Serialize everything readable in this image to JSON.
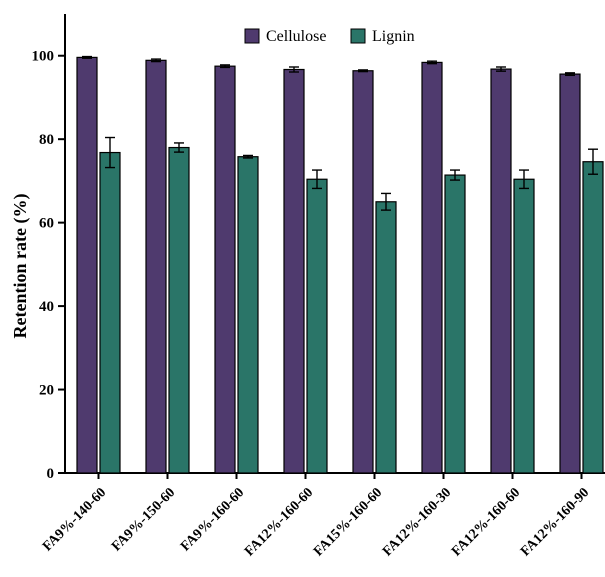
{
  "chart_data": {
    "type": "bar",
    "ylabel": "Retention rate (%)",
    "ylim": [
      0,
      110
    ],
    "yticks": [
      0,
      20,
      40,
      60,
      80,
      100
    ],
    "grid": false,
    "legend_position": "top-center",
    "categories": [
      "FA9%-140-60",
      "FA9%-150-60",
      "FA9%-160-60",
      "FA12%-160-60",
      "FA15%-160-60",
      "FA12%-160-30",
      "FA12%-160-60",
      "FA12%-160-90"
    ],
    "series": [
      {
        "name": "Cellulose",
        "color": "#4f3a6e",
        "values": [
          99.6,
          98.9,
          97.5,
          96.7,
          96.4,
          98.4,
          96.8,
          95.6
        ],
        "errors": [
          0.2,
          0.3,
          0.3,
          0.6,
          0.2,
          0.3,
          0.5,
          0.3
        ]
      },
      {
        "name": "Lignin",
        "color": "#2a7568",
        "values": [
          76.8,
          78.0,
          75.8,
          70.4,
          65.0,
          71.4,
          70.4,
          74.6
        ],
        "errors": [
          3.6,
          1.1,
          0.3,
          2.2,
          2.0,
          1.2,
          2.2,
          3.0
        ]
      }
    ]
  }
}
